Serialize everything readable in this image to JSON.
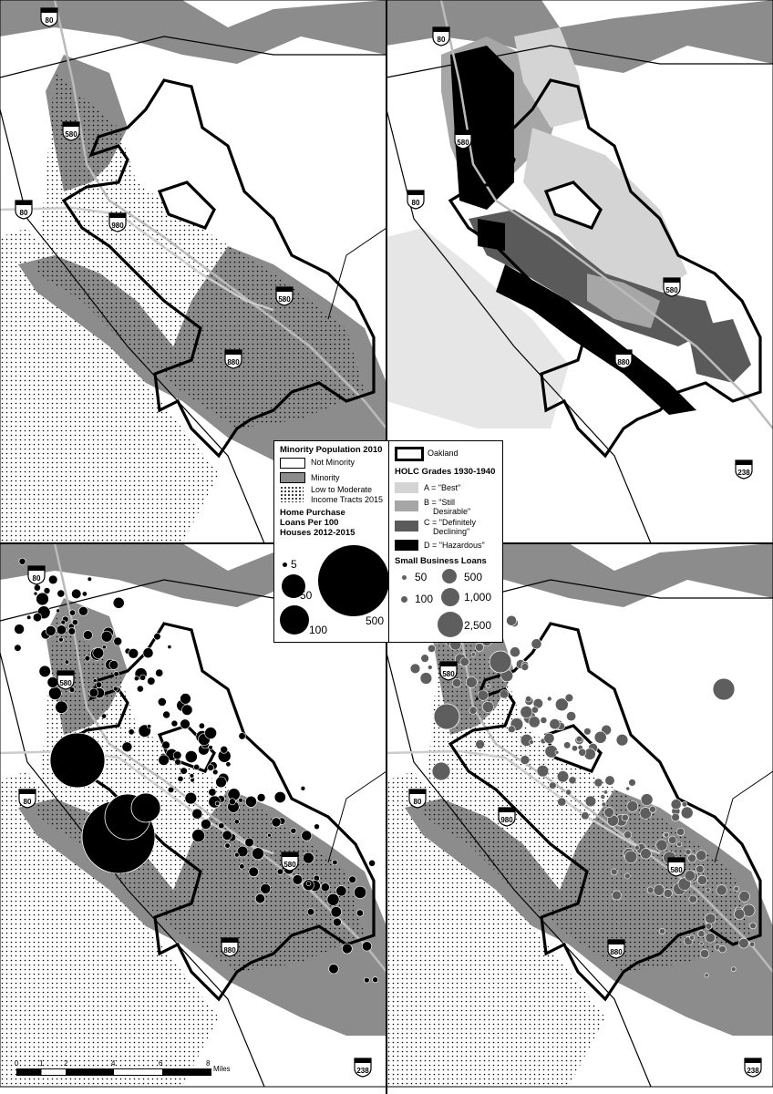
{
  "legend": {
    "minority_title": "Minority Population 2010",
    "not_minority": "Not Minority",
    "minority": "Minority",
    "low_moderate_line1": "Low to Moderate",
    "low_moderate_line2": "Income Tracts 2015",
    "home_title_1": "Home Purchase",
    "home_title_2": "Loans Per 100",
    "home_title_3": "Houses 2012-2015",
    "home_sizes": [
      "5",
      "50",
      "100",
      "500"
    ],
    "oakland": "Oakland",
    "holc_title": "HOLC Grades 1930-1940",
    "holc_a": "A = \"Best\"",
    "holc_b1": "B = \"Still",
    "holc_b2": "Desirable\"",
    "holc_c1": "C = \"Definitely",
    "holc_c2": "Declining\"",
    "holc_d": "D = \"Hazardous\"",
    "sb_title": "Small Business Loans",
    "sb_sizes": [
      "50",
      "100",
      "500",
      "1,000",
      "2,500"
    ]
  },
  "shields": {
    "i80": "80",
    "i580": "580",
    "i980": "980",
    "i880": "880",
    "i238": "238"
  },
  "scale": {
    "ticks": [
      "0",
      "1",
      "2",
      "4",
      "6",
      "8"
    ],
    "unit": "Miles"
  },
  "colors": {
    "minority": "#8c8c8c",
    "not_minority": "#ffffff",
    "holc_a": "#d4d4d4",
    "holc_b": "#a6a6a6",
    "holc_c": "#5a5a5a",
    "holc_d": "#000000",
    "home_circle": "#000000",
    "sb_circle": "#5e5e5e"
  }
}
